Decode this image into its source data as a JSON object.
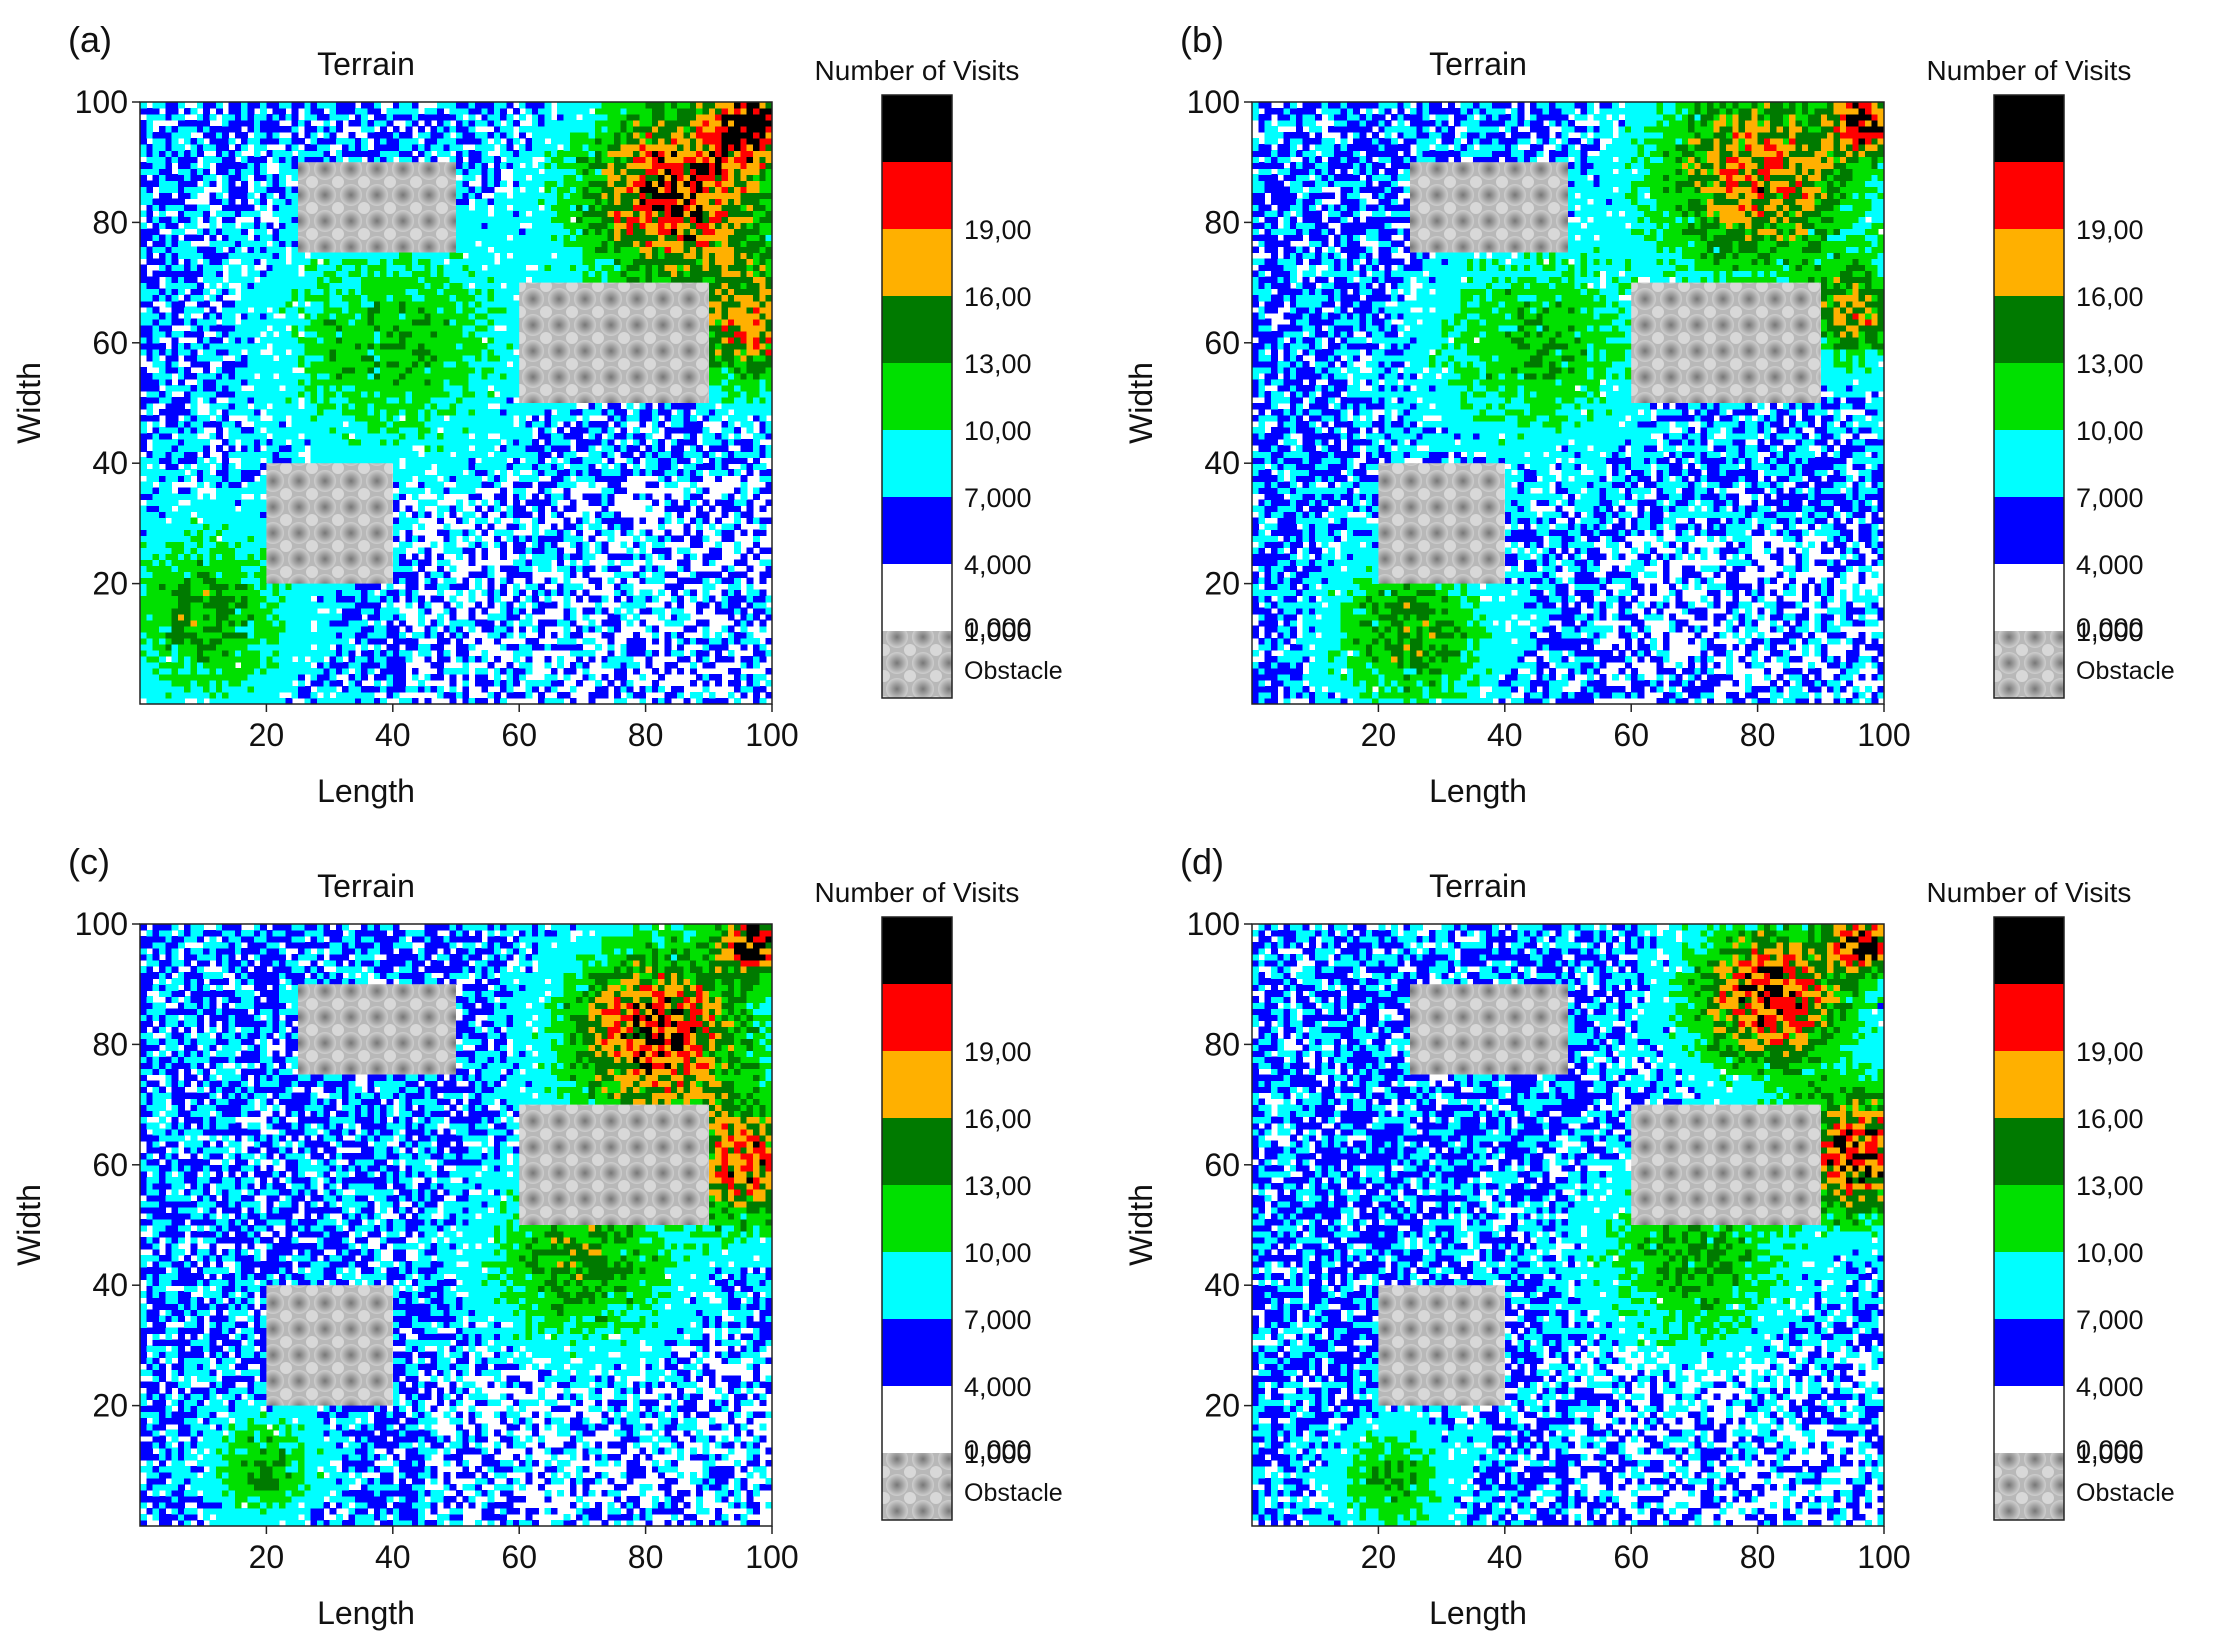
{
  "chart_data": [
    {
      "panel_label": "(a)",
      "type": "heatmap",
      "title": "Terrain",
      "xlabel": "Length",
      "ylabel": "Width",
      "xlim": [
        0,
        100
      ],
      "ylim": [
        0,
        100
      ],
      "xticks": [
        "20",
        "40",
        "60",
        "80",
        "100"
      ],
      "yticks": [
        "20",
        "40",
        "60",
        "80",
        "100"
      ],
      "grid_resolution": 1,
      "obstacles": [
        {
          "x0": 25,
          "x1": 50,
          "y0": 75,
          "y1": 90
        },
        {
          "x0": 60,
          "x1": 90,
          "y0": 50,
          "y1": 70
        },
        {
          "x0": 20,
          "x1": 40,
          "y0": 20,
          "y1": 40
        }
      ],
      "visit_hotspots": [
        {
          "x": 85,
          "y": 85,
          "peak": 15,
          "spread": 15
        },
        {
          "x": 97,
          "y": 97,
          "peak": 17,
          "spread": 6
        },
        {
          "x": 97,
          "y": 62,
          "peak": 11,
          "spread": 10
        },
        {
          "x": 10,
          "y": 15,
          "peak": 7,
          "spread": 14
        },
        {
          "x": 40,
          "y": 60,
          "peak": 6,
          "spread": 18
        }
      ],
      "sparse_region": {
        "x0": 42,
        "x1": 100,
        "y0": 0,
        "y1": 38
      },
      "seed": 11,
      "colorbar": {
        "title": "Number of Visits",
        "bins": [
          {
            "value_label": "",
            "color": "#000000"
          },
          {
            "value_label": "19,00",
            "color": "#ff0000"
          },
          {
            "value_label": "16,00",
            "color": "#ffb000"
          },
          {
            "value_label": "13,00",
            "color": "#007a00"
          },
          {
            "value_label": "10,00",
            "color": "#00e000"
          },
          {
            "value_label": "7,000",
            "color": "#00ffff"
          },
          {
            "value_label": "4,000",
            "color": "#0000ff"
          },
          {
            "value_label": "1,000",
            "color": "#ffffff"
          }
        ],
        "bottom_label": "0,000",
        "obstacle_label": "Obstacle"
      }
    },
    {
      "panel_label": "(b)",
      "type": "heatmap",
      "title": "Terrain",
      "xlabel": "Length",
      "ylabel": "Width",
      "xlim": [
        0,
        100
      ],
      "ylim": [
        0,
        100
      ],
      "xticks": [
        "20",
        "40",
        "60",
        "80",
        "100"
      ],
      "yticks": [
        "20",
        "40",
        "60",
        "80",
        "100"
      ],
      "grid_resolution": 1,
      "obstacles": [
        {
          "x0": 25,
          "x1": 50,
          "y0": 75,
          "y1": 90
        },
        {
          "x0": 60,
          "x1": 90,
          "y0": 50,
          "y1": 70
        },
        {
          "x0": 20,
          "x1": 40,
          "y0": 20,
          "y1": 40
        }
      ],
      "visit_hotspots": [
        {
          "x": 80,
          "y": 88,
          "peak": 12,
          "spread": 16
        },
        {
          "x": 97,
          "y": 97,
          "peak": 16,
          "spread": 5
        },
        {
          "x": 96,
          "y": 65,
          "peak": 10,
          "spread": 8
        },
        {
          "x": 25,
          "y": 12,
          "peak": 8,
          "spread": 12
        },
        {
          "x": 45,
          "y": 60,
          "peak": 6,
          "spread": 16
        }
      ],
      "sparse_region": {
        "x0": 55,
        "x1": 100,
        "y0": 0,
        "y1": 28
      },
      "seed": 23,
      "colorbar": {
        "title": "Number of Visits",
        "bins": [
          {
            "value_label": "",
            "color": "#000000"
          },
          {
            "value_label": "19,00",
            "color": "#ff0000"
          },
          {
            "value_label": "16,00",
            "color": "#ffb000"
          },
          {
            "value_label": "13,00",
            "color": "#007a00"
          },
          {
            "value_label": "10,00",
            "color": "#00e000"
          },
          {
            "value_label": "7,000",
            "color": "#00ffff"
          },
          {
            "value_label": "4,000",
            "color": "#0000ff"
          },
          {
            "value_label": "1,000",
            "color": "#ffffff"
          }
        ],
        "bottom_label": "0,000",
        "obstacle_label": "Obstacle"
      }
    },
    {
      "panel_label": "(c)",
      "type": "heatmap",
      "title": "Terrain",
      "xlabel": "Length",
      "ylabel": "Width",
      "xlim": [
        0,
        100
      ],
      "ylim": [
        0,
        100
      ],
      "xticks": [
        "20",
        "40",
        "60",
        "80",
        "100"
      ],
      "yticks": [
        "20",
        "40",
        "60",
        "80",
        "100"
      ],
      "grid_resolution": 1,
      "obstacles": [
        {
          "x0": 25,
          "x1": 50,
          "y0": 75,
          "y1": 90
        },
        {
          "x0": 60,
          "x1": 90,
          "y0": 50,
          "y1": 70
        },
        {
          "x0": 20,
          "x1": 40,
          "y0": 20,
          "y1": 40
        }
      ],
      "visit_hotspots": [
        {
          "x": 82,
          "y": 82,
          "peak": 15,
          "spread": 14
        },
        {
          "x": 97,
          "y": 97,
          "peak": 17,
          "spread": 5
        },
        {
          "x": 96,
          "y": 60,
          "peak": 13,
          "spread": 10
        },
        {
          "x": 20,
          "y": 10,
          "peak": 7,
          "spread": 8
        },
        {
          "x": 70,
          "y": 45,
          "peak": 8,
          "spread": 14
        }
      ],
      "sparse_region": {
        "x0": 45,
        "x1": 100,
        "y0": 0,
        "y1": 30
      },
      "seed": 37,
      "colorbar": {
        "title": "Number of Visits",
        "bins": [
          {
            "value_label": "",
            "color": "#000000"
          },
          {
            "value_label": "19,00",
            "color": "#ff0000"
          },
          {
            "value_label": "16,00",
            "color": "#ffb000"
          },
          {
            "value_label": "13,00",
            "color": "#007a00"
          },
          {
            "value_label": "10,00",
            "color": "#00e000"
          },
          {
            "value_label": "7,000",
            "color": "#00ffff"
          },
          {
            "value_label": "4,000",
            "color": "#0000ff"
          },
          {
            "value_label": "1,000",
            "color": "#ffffff"
          }
        ],
        "bottom_label": "0,000",
        "obstacle_label": "Obstacle"
      }
    },
    {
      "panel_label": "(d)",
      "type": "heatmap",
      "title": "Terrain",
      "xlabel": "Length",
      "ylabel": "Width",
      "xlim": [
        0,
        100
      ],
      "ylim": [
        0,
        100
      ],
      "xticks": [
        "20",
        "40",
        "60",
        "80",
        "100"
      ],
      "yticks": [
        "20",
        "40",
        "60",
        "80",
        "100"
      ],
      "grid_resolution": 1,
      "obstacles": [
        {
          "x0": 25,
          "x1": 50,
          "y0": 75,
          "y1": 90
        },
        {
          "x0": 60,
          "x1": 90,
          "y0": 50,
          "y1": 70
        },
        {
          "x0": 20,
          "x1": 40,
          "y0": 20,
          "y1": 40
        }
      ],
      "visit_hotspots": [
        {
          "x": 82,
          "y": 88,
          "peak": 15,
          "spread": 12
        },
        {
          "x": 97,
          "y": 97,
          "peak": 16,
          "spread": 5
        },
        {
          "x": 96,
          "y": 62,
          "peak": 16,
          "spread": 10
        },
        {
          "x": 22,
          "y": 8,
          "peak": 7,
          "spread": 8
        },
        {
          "x": 70,
          "y": 45,
          "peak": 7,
          "spread": 14
        }
      ],
      "sparse_region": {
        "x0": 50,
        "x1": 100,
        "y0": 0,
        "y1": 30
      },
      "seed": 53,
      "colorbar": {
        "title": "Number of Visits",
        "bins": [
          {
            "value_label": "",
            "color": "#000000"
          },
          {
            "value_label": "19,00",
            "color": "#ff0000"
          },
          {
            "value_label": "16,00",
            "color": "#ffb000"
          },
          {
            "value_label": "13,00",
            "color": "#007a00"
          },
          {
            "value_label": "10,00",
            "color": "#00e000"
          },
          {
            "value_label": "7,000",
            "color": "#00ffff"
          },
          {
            "value_label": "4,000",
            "color": "#0000ff"
          },
          {
            "value_label": "1,000",
            "color": "#ffffff"
          }
        ],
        "bottom_label": "0,000",
        "obstacle_label": "Obstacle"
      }
    }
  ]
}
